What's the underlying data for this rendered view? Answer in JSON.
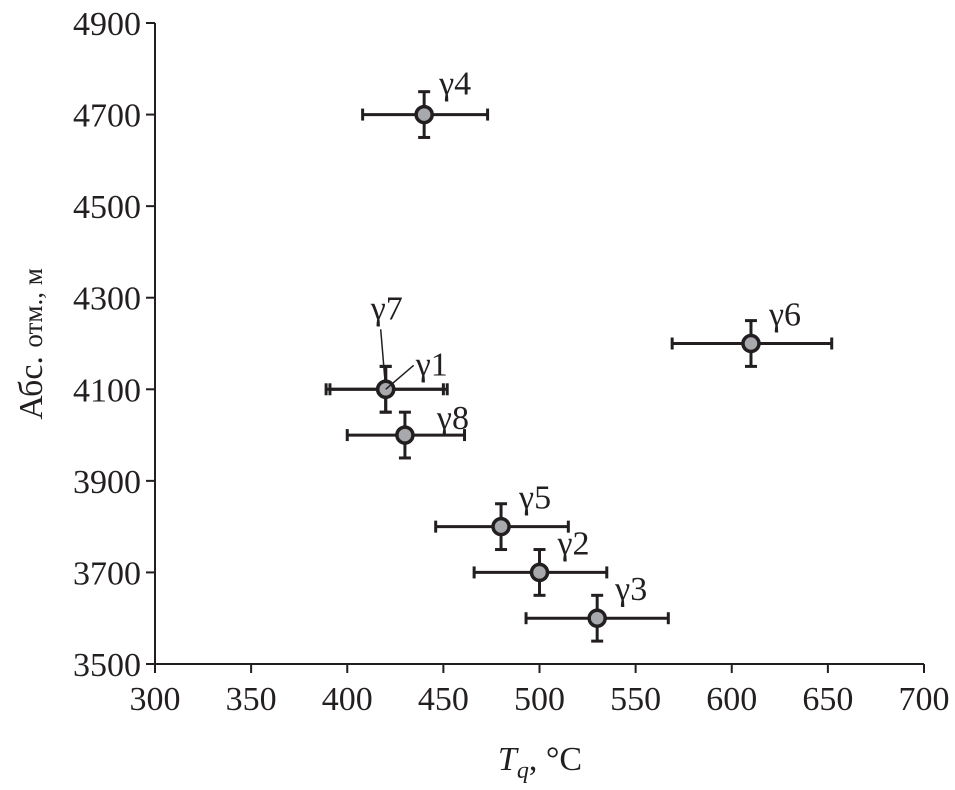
{
  "chart_data": {
    "type": "scatter",
    "xlabel_main": "T",
    "xlabel_sub": "q",
    "xlabel_unit": ", °C",
    "ylabel_main": "Абс. ",
    "ylabel_small": "отм., м",
    "xlim": [
      300,
      700
    ],
    "ylim": [
      3500,
      4900
    ],
    "xticks": [
      300,
      350,
      400,
      450,
      500,
      550,
      600,
      650,
      700
    ],
    "yticks": [
      3500,
      3700,
      3900,
      4100,
      4300,
      4500,
      4700,
      4900
    ],
    "grid": false,
    "marker_color": "#a7a9ac",
    "line_color": "#231f20",
    "points": [
      {
        "label": "γ4",
        "x": 440,
        "y": 4700,
        "xerr": [
          408,
          473
        ],
        "yerr": [
          4650,
          4750
        ]
      },
      {
        "label": "γ7",
        "x": 420,
        "y": 4100,
        "xerr": [
          389,
          450
        ],
        "yerr": [
          4050,
          4150
        ]
      },
      {
        "label": "γ1",
        "x": 420,
        "y": 4100,
        "xerr": [
          391,
          452
        ],
        "yerr": [
          4050,
          4150
        ]
      },
      {
        "label": "γ8",
        "x": 430,
        "y": 4000,
        "xerr": [
          400,
          461
        ],
        "yerr": [
          3950,
          4050
        ]
      },
      {
        "label": "γ6",
        "x": 610,
        "y": 4200,
        "xerr": [
          569,
          652
        ],
        "yerr": [
          4150,
          4250
        ]
      },
      {
        "label": "γ5",
        "x": 480,
        "y": 3800,
        "xerr": [
          446,
          515
        ],
        "yerr": [
          3750,
          3850
        ]
      },
      {
        "label": "γ2",
        "x": 500,
        "y": 3700,
        "xerr": [
          466,
          535
        ],
        "yerr": [
          3650,
          3750
        ]
      },
      {
        "label": "γ3",
        "x": 530,
        "y": 3600,
        "xerr": [
          493,
          567
        ],
        "yerr": [
          3550,
          3650
        ]
      }
    ]
  }
}
